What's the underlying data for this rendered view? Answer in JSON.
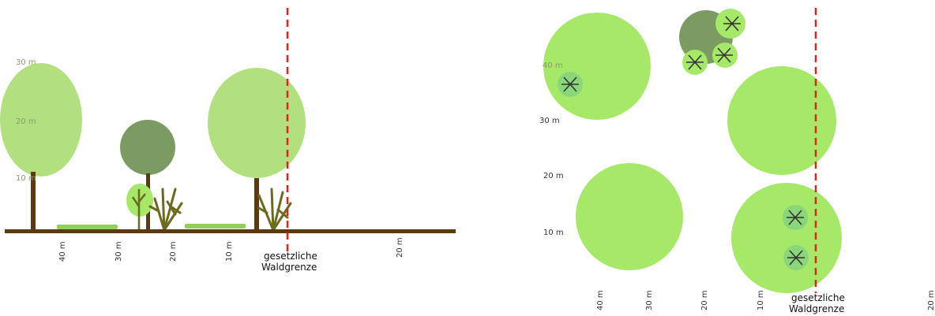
{
  "side_view": {
    "height_labels": [
      "30 m",
      "20 m",
      "10 m"
    ],
    "distance_labels": [
      "40 m",
      "30 m",
      "20 m",
      "10 m",
      "20 m"
    ],
    "boundary_label": [
      "gesetzliche",
      "Waldgrenze"
    ]
  },
  "plan_view": {
    "y_labels": [
      "40 m",
      "30 m",
      "20 m",
      "10 m"
    ],
    "distance_labels": [
      "40 m",
      "30 m",
      "20 m",
      "10 m",
      "20 m"
    ],
    "boundary_label": [
      "gesetzliche",
      "Waldgrenze"
    ]
  },
  "colors": {
    "crown_light": "#b3e07e",
    "crown_bright": "#a6e868",
    "crown_dark": "#7b9b62",
    "sapling": "#8bd67a",
    "trunk": "#5b3a12",
    "shrub": "#6b6a1e",
    "ground": "#5a3a12",
    "grass": "#8fcf5a",
    "boundary": "#e8201a"
  }
}
